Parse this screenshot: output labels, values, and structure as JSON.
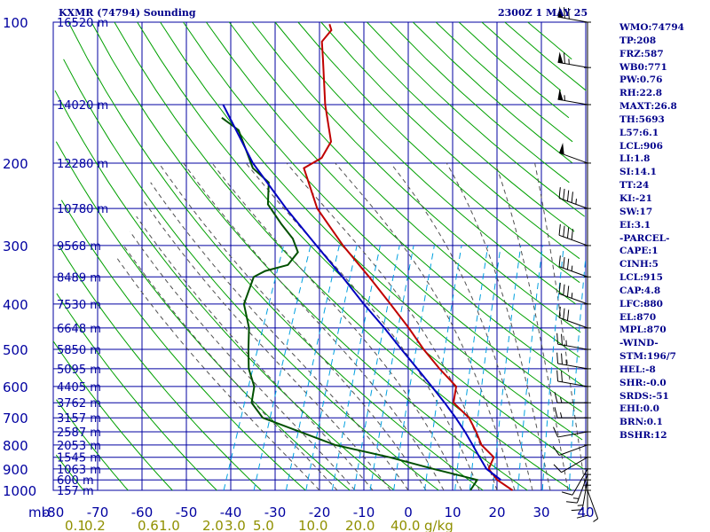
{
  "header": {
    "title": "KXMR (74794) Sounding",
    "datetime": "2300Z  1 MAY 25"
  },
  "indices": [
    "WMO:74794",
    "TP:208",
    "FRZ:587",
    "WB0:771",
    "PW:0.76",
    "RH:22.8",
    "MAXT:26.8",
    "TH:5693",
    "L57:6.1",
    "LCL:906",
    "LI:1.8",
    "SI:14.1",
    "TT:24",
    "KI:-21",
    "SW:17",
    "EI:3.1",
    "-PARCEL-",
    "CAPE:1",
    "CINH:5",
    "LCL:915",
    "CAP:4.8",
    "LFC:880",
    "EL:870",
    "MPL:870",
    "-WIND-",
    "STM:196/7",
    "HEL:-8",
    "SHR:-0.0",
    "SRDS:-51",
    "EHI:0.0",
    "BRN:0.1",
    "BSHR:12"
  ],
  "colors": {
    "frame": "#0000a0",
    "grid": "#0000a0",
    "dry_adiabat": "#00a000",
    "moist_adiabat": "#505050",
    "mixing_ratio": "#00a0e0",
    "temperature": "#c00000",
    "dewpoint": "#005000",
    "parcel": "#0000c0",
    "wind": "#000000"
  },
  "chart_data": {
    "type": "line",
    "title": "KXMR (74794) Sounding",
    "xlabel": "",
    "ylabel": "mb",
    "xlim": [
      -80,
      40
    ],
    "ylim": [
      1000,
      100
    ],
    "y_scale": "log",
    "grid": true,
    "pressure_ticks": [
      100,
      200,
      300,
      400,
      500,
      600,
      700,
      800,
      900,
      1000
    ],
    "temperature_ticks": [
      -80,
      -70,
      -60,
      -50,
      -40,
      -30,
      -20,
      -10,
      0,
      10,
      20,
      30,
      40
    ],
    "height_labels": [
      {
        "p": 100,
        "text": "16520 m"
      },
      {
        "p": 150,
        "text": "14020 m"
      },
      {
        "p": 200,
        "text": "12280 m"
      },
      {
        "p": 250,
        "text": "10780 m"
      },
      {
        "p": 300,
        "text": "9568 m"
      },
      {
        "p": 350,
        "text": "8489 m"
      },
      {
        "p": 400,
        "text": "7530 m"
      },
      {
        "p": 450,
        "text": "6648 m"
      },
      {
        "p": 500,
        "text": "5850 m"
      },
      {
        "p": 550,
        "text": "5095 m"
      },
      {
        "p": 600,
        "text": "4405 m"
      },
      {
        "p": 650,
        "text": "3762 m"
      },
      {
        "p": 700,
        "text": "3157 m"
      },
      {
        "p": 750,
        "text": "2587 m"
      },
      {
        "p": 800,
        "text": "2053 m"
      },
      {
        "p": 850,
        "text": "1545 m"
      },
      {
        "p": 900,
        "text": "1063 m"
      },
      {
        "p": 950,
        "text": "600 m"
      },
      {
        "p": 1000,
        "text": "157 m"
      }
    ],
    "mixing_ratio_labels": [
      "0.1",
      "0.2",
      "0.6",
      "1.0",
      "2.0",
      "3.0",
      "5.0",
      "10.0",
      "20.0",
      "40.0"
    ],
    "mixing_ratio_unit": "g/kg",
    "series": [
      {
        "key": "temperature",
        "points": [
          [
            1013,
            24.5
          ],
          [
            1000,
            23.5
          ],
          [
            950,
            19
          ],
          [
            900,
            16
          ],
          [
            850,
            16
          ],
          [
            800,
            12
          ],
          [
            750,
            9.5
          ],
          [
            700,
            6.5
          ],
          [
            650,
            1.5
          ],
          [
            600,
            0.5
          ],
          [
            550,
            -5
          ],
          [
            500,
            -10.5
          ],
          [
            450,
            -16
          ],
          [
            400,
            -22.5
          ],
          [
            350,
            -30
          ],
          [
            300,
            -39
          ],
          [
            250,
            -48.5
          ],
          [
            205,
            -55.5
          ],
          [
            195,
            -52.5
          ],
          [
            180,
            -52
          ],
          [
            150,
            -57
          ],
          [
            120,
            -62
          ],
          [
            110,
            -64
          ],
          [
            104,
            -63
          ],
          [
            101,
            -64
          ]
        ]
      },
      {
        "key": "dewpoint",
        "points": [
          [
            1013,
            15.5
          ],
          [
            1000,
            14
          ],
          [
            950,
            14.5
          ],
          [
            900,
            3.5
          ],
          [
            850,
            -7.5
          ],
          [
            800,
            -21
          ],
          [
            700,
            -40
          ],
          [
            650,
            -44
          ],
          [
            600,
            -45
          ],
          [
            550,
            -48
          ],
          [
            500,
            -50
          ],
          [
            450,
            -52
          ],
          [
            400,
            -55.5
          ],
          [
            350,
            -56
          ],
          [
            340,
            -54
          ],
          [
            330,
            -49.5
          ],
          [
            310,
            -48.5
          ],
          [
            290,
            -51
          ],
          [
            270,
            -55
          ],
          [
            245,
            -60
          ],
          [
            220,
            -62
          ],
          [
            205,
            -67
          ],
          [
            170,
            -74
          ],
          [
            160,
            -79
          ]
        ]
      },
      {
        "key": "parcel",
        "points": [
          [
            1013,
            24.5
          ],
          [
            950,
            19.8
          ],
          [
            915,
            16.8
          ],
          [
            900,
            15.5
          ],
          [
            850,
            12.8
          ],
          [
            800,
            10
          ],
          [
            750,
            7
          ],
          [
            700,
            3.5
          ],
          [
            650,
            -0.5
          ],
          [
            600,
            -5
          ],
          [
            550,
            -10
          ],
          [
            500,
            -15.5
          ],
          [
            450,
            -21.5
          ],
          [
            400,
            -28.5
          ],
          [
            350,
            -36
          ],
          [
            300,
            -45
          ],
          [
            250,
            -55.5
          ],
          [
            200,
            -67.5
          ],
          [
            150,
            -80
          ]
        ]
      }
    ],
    "wind_barbs": [
      {
        "p": 1000,
        "dir": 160,
        "spd": 5
      },
      {
        "p": 975,
        "dir": 180,
        "spd": 10
      },
      {
        "p": 950,
        "dir": 190,
        "spd": 15
      },
      {
        "p": 925,
        "dir": 200,
        "spd": 15
      },
      {
        "p": 900,
        "dir": 210,
        "spd": 10
      },
      {
        "p": 850,
        "dir": 240,
        "spd": 10
      },
      {
        "p": 800,
        "dir": 250,
        "spd": 10
      },
      {
        "p": 750,
        "dir": 260,
        "spd": 10
      },
      {
        "p": 700,
        "dir": 270,
        "spd": 15
      },
      {
        "p": 650,
        "dir": 270,
        "spd": 15
      },
      {
        "p": 600,
        "dir": 280,
        "spd": 20
      },
      {
        "p": 550,
        "dir": 280,
        "spd": 25
      },
      {
        "p": 500,
        "dir": 280,
        "spd": 25
      },
      {
        "p": 450,
        "dir": 290,
        "spd": 30
      },
      {
        "p": 400,
        "dir": 290,
        "spd": 35
      },
      {
        "p": 350,
        "dir": 290,
        "spd": 35
      },
      {
        "p": 300,
        "dir": 290,
        "spd": 40
      },
      {
        "p": 250,
        "dir": 290,
        "spd": 45
      },
      {
        "p": 200,
        "dir": 290,
        "spd": 50
      },
      {
        "p": 150,
        "dir": 280,
        "spd": 55
      },
      {
        "p": 125,
        "dir": 280,
        "spd": 65
      },
      {
        "p": 100,
        "dir": 280,
        "spd": 70
      }
    ]
  }
}
